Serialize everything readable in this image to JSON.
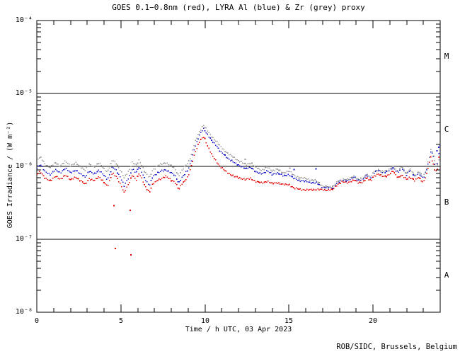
{
  "attribution": "ROB/SIDC, Brussels, Belgium",
  "colors": {
    "background": "#ffffff",
    "axis": "#000000",
    "goes_red": "#e60000",
    "lyra_al_blue": "#1a1acc",
    "lyra_zr_grey": "#9a9a9a"
  },
  "chart_data": {
    "type": "line",
    "style": "dotted",
    "title": "GOES 0.1−0.8nm (red), LYRA Al (blue) & Zr (grey) proxy",
    "xlabel": "Time / h UTC, 03 Apr 2023",
    "ylabel": "GOES Irradiance / (W m⁻²)",
    "xlim": [
      0,
      24
    ],
    "ylim": [
      1e-08,
      0.0001
    ],
    "y_scale": "log",
    "x_tick_labels": [
      "0",
      "5",
      "10",
      "15",
      "20"
    ],
    "x_ticks_major": [
      0,
      5,
      10,
      15,
      20
    ],
    "x_minor_tick_step_h": 1,
    "y_tick_labels": [
      "10⁻⁴",
      "10⁻⁵",
      "10⁻⁶",
      "10⁻⁷",
      "10⁻⁸"
    ],
    "y_tick_exponents": [
      -4,
      -5,
      -6,
      -7,
      -8
    ],
    "hlines_w_m2": [
      1e-05,
      1e-06,
      1e-07
    ],
    "flare_class_labels": [
      "M",
      "C",
      "B",
      "A"
    ],
    "values_unit": "1e-6 W m-2",
    "x_hours": [
      0.0,
      0.2,
      0.5,
      0.8,
      1.1,
      1.4,
      1.7,
      2.0,
      2.3,
      2.6,
      2.9,
      3.1,
      3.4,
      3.7,
      4.0,
      4.2,
      4.5,
      4.7,
      5.0,
      5.2,
      5.5,
      5.7,
      5.9,
      6.1,
      6.4,
      6.7,
      6.9,
      7.2,
      7.4,
      7.7,
      8.0,
      8.2,
      8.45,
      8.65,
      8.8,
      9.0,
      9.2,
      9.4,
      9.65,
      9.9,
      10.0,
      10.2,
      10.4,
      10.7,
      10.9,
      11.2,
      11.5,
      11.8,
      12.1,
      12.45,
      12.75,
      13.05,
      13.4,
      13.7,
      14.0,
      14.3,
      14.65,
      15.0,
      15.3,
      15.65,
      16.0,
      16.3,
      16.65,
      17.0,
      17.3,
      17.6,
      17.9,
      18.2,
      18.5,
      18.9,
      19.1,
      19.4,
      19.65,
      19.9,
      20.0,
      20.3,
      20.6,
      20.9,
      21.2,
      21.5,
      21.7,
      22.0,
      22.2,
      22.5,
      22.7,
      23.0,
      23.2,
      23.35,
      23.45,
      23.6,
      23.7,
      23.85,
      23.95,
      24.0
    ],
    "series": [
      {
        "name": "GOES 0.1−0.8nm",
        "color": "#e60000",
        "values": [
          0.78,
          0.86,
          0.68,
          0.64,
          0.73,
          0.66,
          0.77,
          0.65,
          0.72,
          0.63,
          0.57,
          0.68,
          0.63,
          0.73,
          0.6,
          0.53,
          0.82,
          0.73,
          0.56,
          0.44,
          0.59,
          0.77,
          0.65,
          0.8,
          0.56,
          0.44,
          0.57,
          0.65,
          0.68,
          0.73,
          0.65,
          0.61,
          0.48,
          0.59,
          0.63,
          0.72,
          1.02,
          1.53,
          2.1,
          2.56,
          2.39,
          1.83,
          1.45,
          1.16,
          1.0,
          0.87,
          0.78,
          0.72,
          0.69,
          0.66,
          0.68,
          0.62,
          0.59,
          0.63,
          0.58,
          0.6,
          0.56,
          0.57,
          0.5,
          0.49,
          0.47,
          0.48,
          0.48,
          0.48,
          0.47,
          0.48,
          0.57,
          0.61,
          0.6,
          0.65,
          0.6,
          0.61,
          0.69,
          0.63,
          0.72,
          0.78,
          0.73,
          0.75,
          0.86,
          0.7,
          0.75,
          0.67,
          0.71,
          0.63,
          0.72,
          0.6,
          0.78,
          1.12,
          1.37,
          1.07,
          0.86,
          0.9,
          1.6,
          1.9
        ]
      },
      {
        "name": "LYRA Al proxy",
        "color": "#1a1acc",
        "values": [
          0.96,
          1.07,
          0.84,
          0.78,
          0.89,
          0.82,
          0.94,
          0.82,
          0.89,
          0.78,
          0.72,
          0.86,
          0.78,
          0.89,
          0.75,
          0.66,
          0.98,
          0.89,
          0.7,
          0.54,
          0.72,
          0.94,
          0.82,
          0.98,
          0.7,
          0.54,
          0.72,
          0.82,
          0.86,
          0.89,
          0.82,
          0.75,
          0.59,
          0.72,
          0.78,
          0.89,
          1.22,
          1.83,
          2.56,
          3.34,
          3.13,
          2.62,
          2.26,
          1.93,
          1.62,
          1.4,
          1.23,
          1.1,
          1.02,
          0.92,
          0.98,
          0.83,
          0.79,
          0.87,
          0.77,
          0.82,
          0.74,
          0.77,
          0.68,
          0.64,
          0.62,
          0.6,
          0.59,
          0.52,
          0.51,
          0.51,
          0.61,
          0.64,
          0.65,
          0.71,
          0.65,
          0.66,
          0.76,
          0.69,
          0.8,
          0.88,
          0.83,
          0.85,
          0.96,
          0.82,
          0.96,
          0.77,
          0.89,
          0.72,
          0.83,
          0.68,
          0.9,
          1.28,
          1.67,
          1.35,
          1.02,
          1.1,
          1.7,
          1.9
        ]
      },
      {
        "name": "LYRA Zr proxy",
        "color": "#9a9a9a",
        "values": [
          1.22,
          1.34,
          1.07,
          0.97,
          1.12,
          1.02,
          1.17,
          1.02,
          1.12,
          0.98,
          0.89,
          1.07,
          0.98,
          1.12,
          0.92,
          0.84,
          1.22,
          1.12,
          0.87,
          0.69,
          0.89,
          1.17,
          1.02,
          1.22,
          0.87,
          0.69,
          0.89,
          1.02,
          1.07,
          1.12,
          1.02,
          0.93,
          0.74,
          0.89,
          0.98,
          1.12,
          1.45,
          2.1,
          2.87,
          3.74,
          3.5,
          2.96,
          2.56,
          2.19,
          1.89,
          1.63,
          1.43,
          1.28,
          1.17,
          1.05,
          1.12,
          0.95,
          0.89,
          0.98,
          0.87,
          0.92,
          0.81,
          0.87,
          0.75,
          0.7,
          0.68,
          0.65,
          0.63,
          0.54,
          0.52,
          0.53,
          0.62,
          0.66,
          0.67,
          0.73,
          0.67,
          0.68,
          0.78,
          0.71,
          0.82,
          0.9,
          0.85,
          0.87,
          1.0,
          0.84,
          1.0,
          0.8,
          0.92,
          0.75,
          0.86,
          0.72,
          0.94,
          1.34,
          1.75,
          1.4,
          1.12,
          1.05,
          1.3,
          1.5
        ]
      }
    ],
    "outliers": [
      {
        "series": "GOES 0.1−0.8nm",
        "color": "#e60000",
        "points": [
          [
            4.59,
            0.29
          ],
          [
            5.56,
            0.25
          ],
          [
            4.67,
            0.075
          ],
          [
            5.6,
            0.061
          ]
        ]
      },
      {
        "series": "LYRA Al proxy",
        "color": "#1a1acc",
        "points": [
          [
            15.3,
            0.9
          ],
          [
            16.6,
            0.92
          ],
          [
            23.8,
            1.63
          ],
          [
            23.92,
            1.83
          ]
        ]
      },
      {
        "series": "LYRA Zr proxy",
        "color": "#9a9a9a",
        "points": [
          [
            12.4,
            1.25
          ],
          [
            15.05,
            0.95
          ]
        ]
      }
    ],
    "annotations": {
      "flare_peak_time_h": 9.9,
      "flare_peak_grey_w_m2": 3.7e-06,
      "end_spike_time_h": 23.45
    }
  }
}
